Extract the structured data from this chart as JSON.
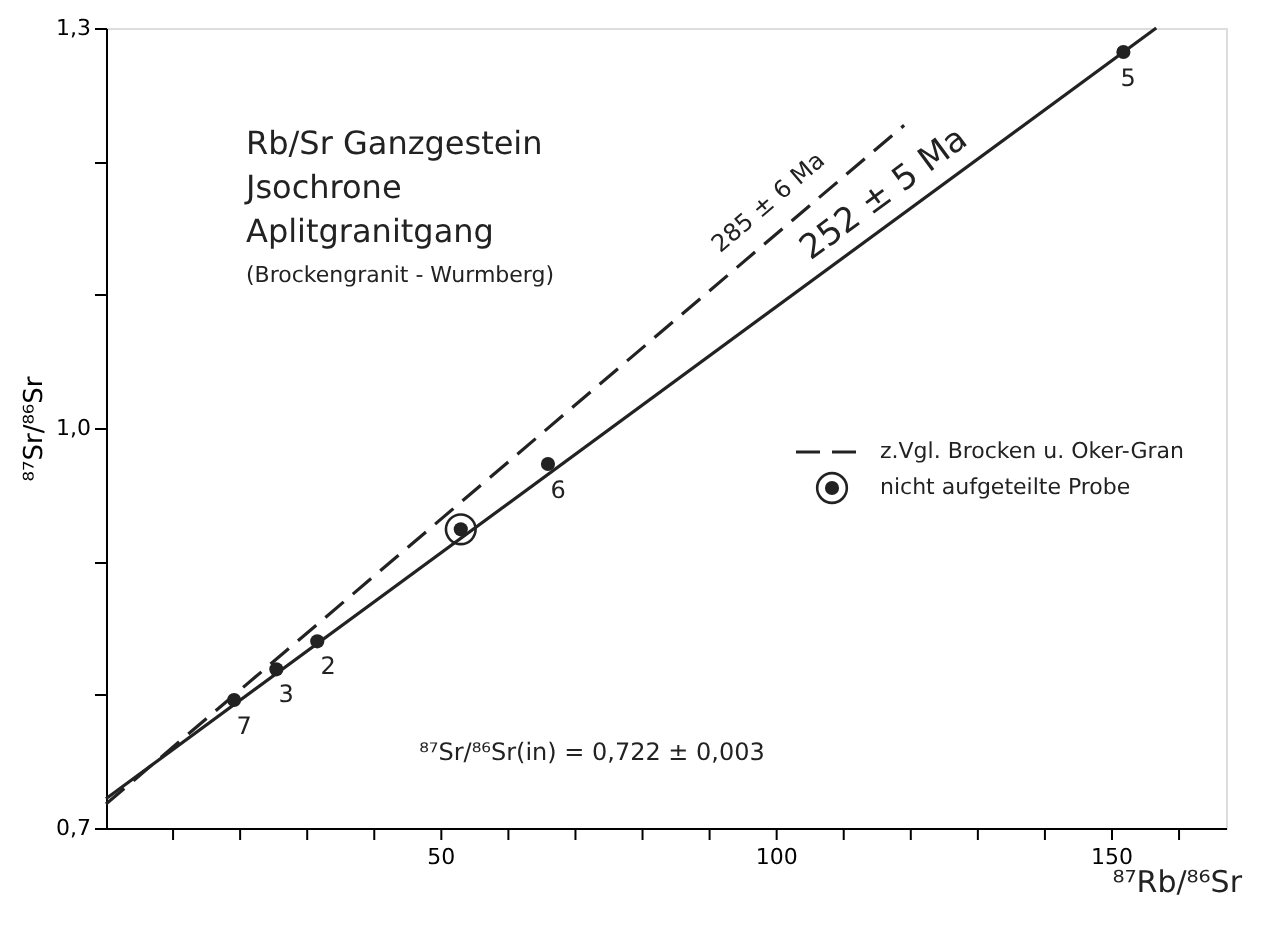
{
  "chart_data": {
    "type": "scatter",
    "title": "Rb/Sr Ganzgestein\nJsochrone\nAplitgranitgang",
    "subtitle": "(Brockengranit - Wurmberg)",
    "xlabel": "⁸⁷Rb/⁸⁶Sr",
    "ylabel": "⁸⁷Sr/⁸⁶Sr",
    "xlim": [
      0,
      167
    ],
    "ylim": [
      0.7,
      1.3
    ],
    "xticks": [
      {
        "value": 10,
        "label": null
      },
      {
        "value": 20,
        "label": null
      },
      {
        "value": 30,
        "label": null
      },
      {
        "value": 40,
        "label": null
      },
      50,
      {
        "value": 60,
        "label": null
      },
      {
        "value": 70,
        "label": null
      },
      {
        "value": 80,
        "label": null
      },
      {
        "value": 90,
        "label": null
      },
      100,
      {
        "value": 110,
        "label": null
      },
      {
        "value": 120,
        "label": null
      },
      {
        "value": 130,
        "label": null
      },
      {
        "value": 140,
        "label": null
      },
      150,
      {
        "value": 160,
        "label": null
      }
    ],
    "yticks": [
      {
        "value": 0.7,
        "label": "0,7"
      },
      {
        "value": 0.8,
        "label": null
      },
      {
        "value": 0.9,
        "label": null
      },
      {
        "value": 1.0,
        "label": "1,0"
      },
      {
        "value": 1.1,
        "label": null
      },
      {
        "value": 1.2,
        "label": null
      },
      {
        "value": 1.3,
        "label": "1,3"
      }
    ],
    "grid": false,
    "legend": "right",
    "series": [
      {
        "color": "#222222",
        "marker": "circle",
        "x": [
          19.1,
          25.4,
          31.5,
          65.9,
          151.7
        ],
        "values": [
          0.796,
          0.819,
          0.84,
          0.973,
          1.282
        ]
      },
      {
        "type": "line",
        "color": "#222222",
        "line_style": "solid",
        "x": [
          0,
          156.6
        ],
        "values": [
          0.722,
          1.3
        ]
      },
      {
        "type": "line",
        "name": "z.Vgl. Brocken u. Oker-Gran",
        "color": "#222222",
        "line_style": "dashed",
        "x": [
          0,
          119
        ],
        "values": [
          0.718,
          1.227
        ]
      },
      {
        "name": "nicht aufgeteilte Probe",
        "color": "#222222",
        "marker": "circle",
        "x": [
          52.9
        ],
        "values": [
          0.924
        ]
      }
    ],
    "annotations": [
      "7",
      "3",
      "2",
      "6",
      "5",
      "285 ± 6 Ma",
      "252 ± 5 Ma",
      "⁸⁷Sr/⁸⁶Sr(in) = 0,722 ± 0,003"
    ]
  }
}
